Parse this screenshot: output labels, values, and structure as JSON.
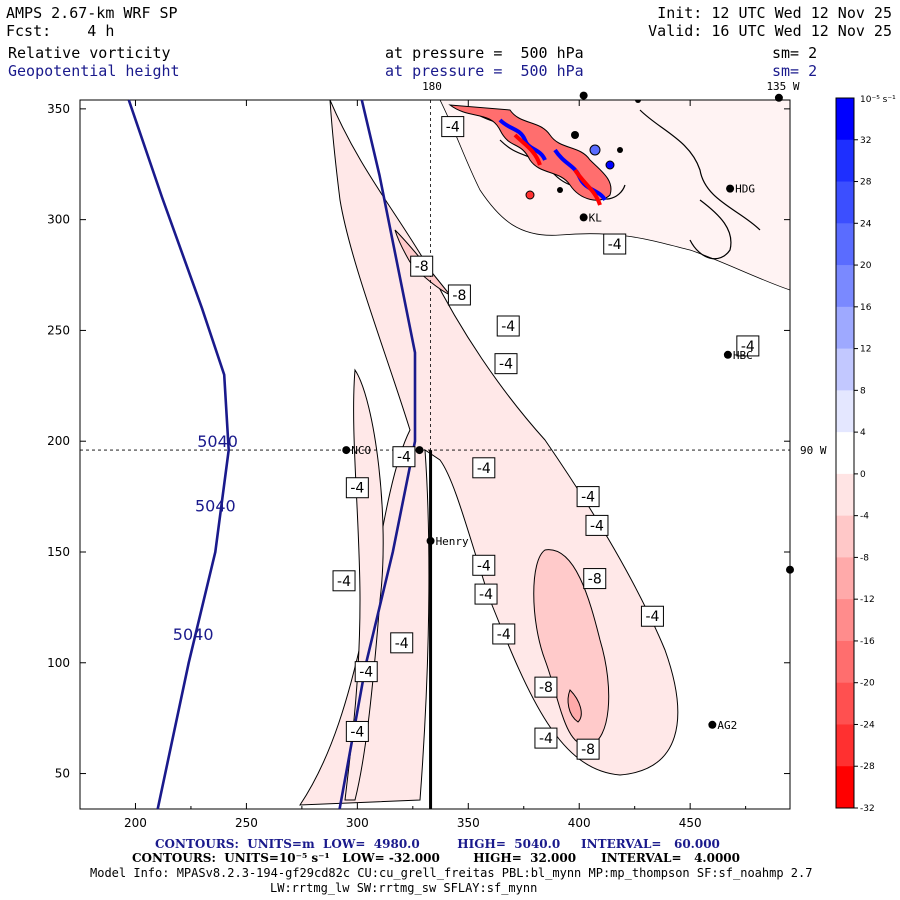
{
  "header": {
    "model": "AMPS 2.67-km WRF SP",
    "fcst": "Fcst:    4 h",
    "init": "Init: 12 UTC Wed 12 Nov 25",
    "valid": "Valid: 16 UTC Wed 12 Nov 25",
    "field1": "Relative vorticity",
    "field2": "Geopotential height",
    "pressure1": "at pressure =  500 hPa",
    "pressure2": "at pressure =  500 hPa",
    "sm1": "sm= 2",
    "sm2": "sm= 2"
  },
  "map_labels": {
    "lon_180": "180",
    "lon_135w": "135 W",
    "lon_90w": "90 W"
  },
  "stations": [
    {
      "name": "NCO",
      "x": 295,
      "y": 196
    },
    {
      "name": "Henry",
      "x": 333,
      "y": 155
    },
    {
      "name": "KL",
      "x": 402,
      "y": 301
    },
    {
      "name": "HDG",
      "x": 468,
      "y": 314
    },
    {
      "name": "HBC",
      "x": 467,
      "y": 239
    },
    {
      "name": "AG2",
      "x": 460,
      "y": 72
    }
  ],
  "footer": {
    "contours_height": "CONTOURS:  UNITS=m  LOW=  4980.0         HIGH=  5040.0     INTERVAL=   60.000",
    "contours_vort": "CONTOURS:  UNITS=10⁻⁵ s⁻¹   LOW= -32.000        HIGH=  32.000      INTERVAL=   4.0000",
    "model_info": "Model Info: MPASv8.2.3-194-gf29cd82c CU:cu_grell_freitas PBL:bl_mynn MP:mp_thompson SF:sf_noahmp 2.7",
    "model_info2": "LW:rrtmg_lw SW:rrtmg_sw SFLAY:sf_mynn"
  },
  "colorbar": {
    "title": "10⁻⁵ s⁻¹",
    "ticks": [
      "32",
      "28",
      "24",
      "20",
      "16",
      "12",
      "8",
      "4",
      "0",
      "-4",
      "-8",
      "-12",
      "-16",
      "-20",
      "-24",
      "-28",
      "-32"
    ],
    "colors": [
      "#0000ff",
      "#1e2fff",
      "#3c4fff",
      "#5a6cff",
      "#7a89ff",
      "#9ea9ff",
      "#c2c8ff",
      "#e4e7ff",
      "#ffffff",
      "#ffe4e4",
      "#ffc8c8",
      "#ffaaaa",
      "#ff8c8c",
      "#ff6e6e",
      "#ff5050",
      "#ff3030",
      "#ff0000"
    ]
  },
  "chart_data": {
    "type": "contour-map",
    "title": "Relative vorticity and Geopotential height at 500 hPa",
    "x_axis": {
      "range": [
        175,
        495
      ],
      "ticks": [
        200,
        250,
        300,
        350,
        400,
        450
      ]
    },
    "y_axis": {
      "range": [
        34,
        354
      ],
      "ticks": [
        50,
        100,
        150,
        200,
        250,
        300,
        350
      ]
    },
    "height_contours": {
      "units": "m",
      "low": 4980.0,
      "high": 5040.0,
      "interval": 60.0,
      "labels": [
        "5040",
        "5040",
        "5040"
      ]
    },
    "vorticity_contours": {
      "units": "10⁻⁵ s⁻¹",
      "low": -32.0,
      "high": 32.0,
      "interval": 4.0
    },
    "contour_labels": [
      {
        "text": "-4",
        "x": 343,
        "y": 342
      },
      {
        "text": "-8",
        "x": 329,
        "y": 279
      },
      {
        "text": "-8",
        "x": 346,
        "y": 266
      },
      {
        "text": "-4",
        "x": 368,
        "y": 252
      },
      {
        "text": "-4",
        "x": 367,
        "y": 235
      },
      {
        "text": "-4",
        "x": 416,
        "y": 289
      },
      {
        "text": "-4",
        "x": 476,
        "y": 243
      },
      {
        "text": "-4",
        "x": 321,
        "y": 193
      },
      {
        "text": "-4",
        "x": 300,
        "y": 179
      },
      {
        "text": "-4",
        "x": 357,
        "y": 188
      },
      {
        "text": "-4",
        "x": 404,
        "y": 175
      },
      {
        "text": "-4",
        "x": 408,
        "y": 162
      },
      {
        "text": "-4",
        "x": 294,
        "y": 137
      },
      {
        "text": "-4",
        "x": 357,
        "y": 144
      },
      {
        "text": "-4",
        "x": 358,
        "y": 131
      },
      {
        "text": "-8",
        "x": 407,
        "y": 138
      },
      {
        "text": "-4",
        "x": 366,
        "y": 113
      },
      {
        "text": "-4",
        "x": 433,
        "y": 121
      },
      {
        "text": "-4",
        "x": 320,
        "y": 109
      },
      {
        "text": "-4",
        "x": 304,
        "y": 96
      },
      {
        "text": "-8",
        "x": 385,
        "y": 89
      },
      {
        "text": "-4",
        "x": 300,
        "y": 69
      },
      {
        "text": "-4",
        "x": 385,
        "y": 66
      },
      {
        "text": "-8",
        "x": 404,
        "y": 61
      }
    ],
    "height_label_positions": [
      {
        "text": "5040",
        "x": 237,
        "y": 200
      },
      {
        "text": "5040",
        "x": 236,
        "y": 171
      },
      {
        "text": "5040",
        "x": 226,
        "y": 113
      }
    ],
    "reference_lines": {
      "vertical_x": 333,
      "horizontal_y": 196
    }
  }
}
